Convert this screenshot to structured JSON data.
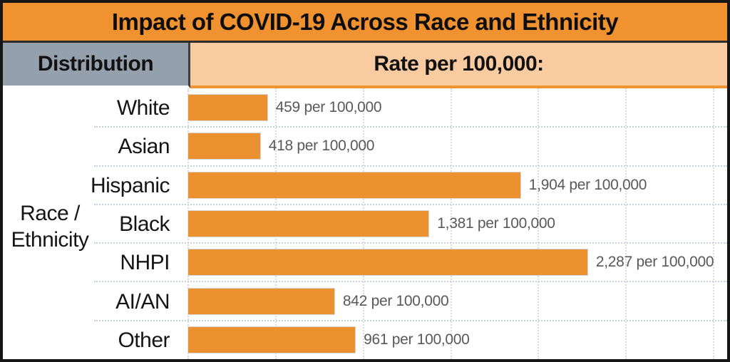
{
  "title": "Impact of COVID-19 Across Race and Ethnicity",
  "header": {
    "distribution_label": "Distribution",
    "rate_label": "Rate per 100,000:"
  },
  "side_axis_label": {
    "line1": "Race /",
    "line2": "Ethnicity"
  },
  "chart_data": {
    "type": "bar",
    "orientation": "horizontal",
    "title": "Impact of COVID-19 Across Race and Ethnicity",
    "ylabel": "Race / Ethnicity",
    "xlabel": "Rate per 100,000",
    "categories": [
      "White",
      "Asian",
      "Hispanic",
      "Black",
      "NHPI",
      "AI/AN",
      "Other"
    ],
    "values": [
      459,
      418,
      1904,
      1381,
      2287,
      842,
      961
    ],
    "value_labels": [
      "459 per 100,000",
      "418 per 100,000",
      "1,904 per 100,000",
      "1,381 per 100,000",
      "2,287 per 100,000",
      "842 per 100,000",
      "961 per 100,000"
    ],
    "xlim": [
      0,
      3080
    ],
    "grid": true,
    "gridline_values": [
      500,
      1000,
      1500,
      2000,
      2500,
      3000
    ],
    "legend": false,
    "bar_color": "#EC9130"
  },
  "colors": {
    "title_bar": "#F09230",
    "bar_fill": "#EC9130",
    "rate_header_bg": "#F8CBA0",
    "distribution_header_bg": "#94A0AC",
    "value_text": "#595959",
    "outer_border": "#161616"
  }
}
